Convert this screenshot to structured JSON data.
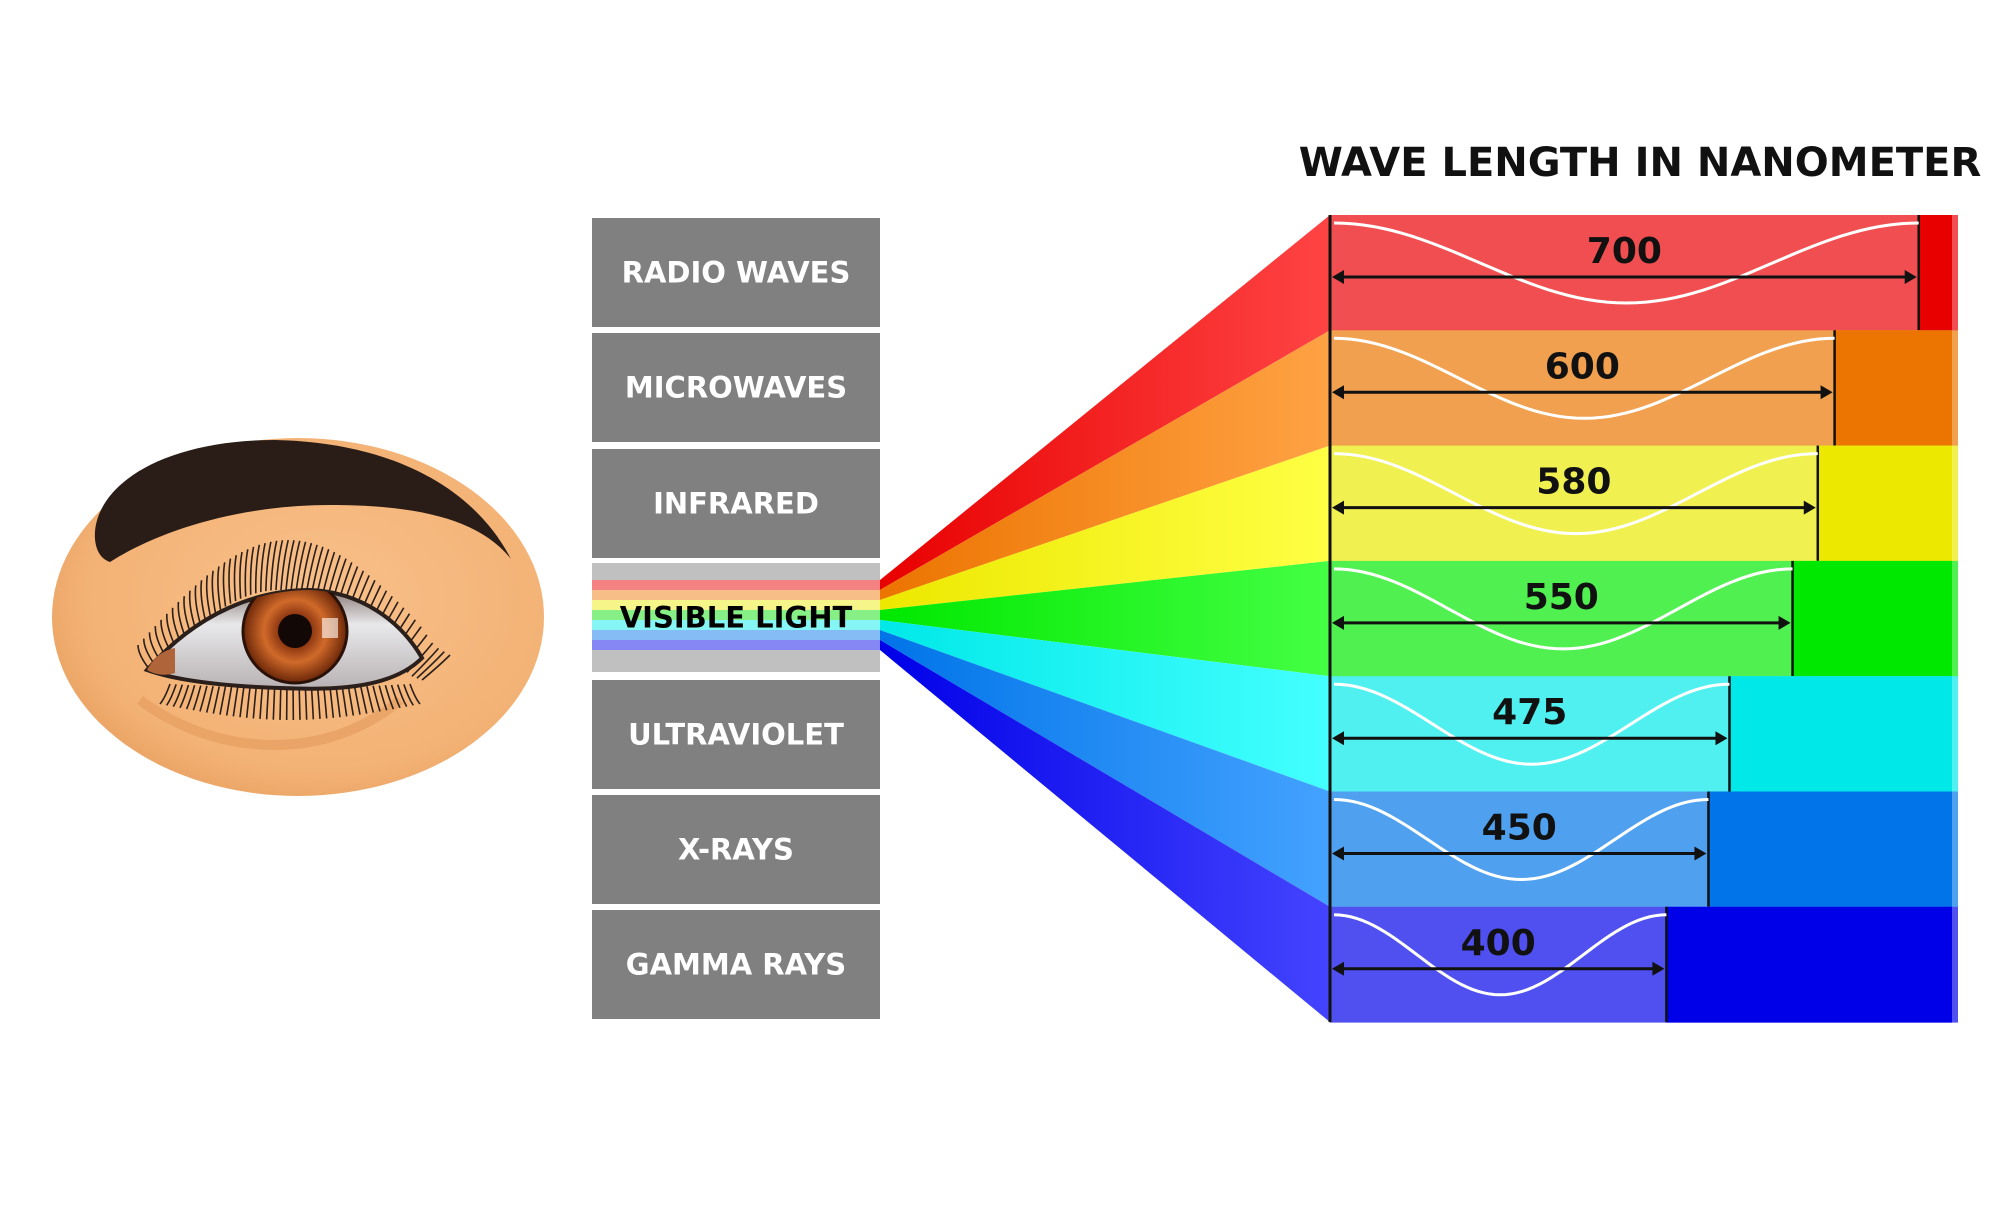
{
  "title": "WAVE LENGTH IN NANOMETER",
  "spectrum_bands": [
    {
      "label": "RADIO WAVES"
    },
    {
      "label": "MICROWAVES"
    },
    {
      "label": "INFRARED"
    },
    {
      "label": "VISIBLE LIGHT"
    },
    {
      "label": "ULTRAVIOLET"
    },
    {
      "label": "X-RAYS"
    },
    {
      "label": "GAMMA RAYS"
    }
  ],
  "wavelengths": [
    {
      "nm": "700",
      "value": 700,
      "light": "#f04e50",
      "dark": "#e80000",
      "fan": "#ff4444",
      "stripe": "#f58282"
    },
    {
      "nm": "600",
      "value": 600,
      "light": "#f0a04e",
      "dark": "#ec7400",
      "fan": "#ffa244",
      "stripe": "#f8be88"
    },
    {
      "nm": "580",
      "value": 580,
      "light": "#f0f050",
      "dark": "#ece800",
      "fan": "#ffff44",
      "stripe": "#f5f58a"
    },
    {
      "nm": "550",
      "value": 550,
      "light": "#50f050",
      "dark": "#00e800",
      "fan": "#44ff44",
      "stripe": "#86f086"
    },
    {
      "nm": "475",
      "value": 475,
      "light": "#50f0f0",
      "dark": "#00e8e8",
      "fan": "#44ffff",
      "stripe": "#86f5f5"
    },
    {
      "nm": "450",
      "value": 450,
      "light": "#50a0f0",
      "dark": "#0074e8",
      "fan": "#44a2ff",
      "stripe": "#86bcf5"
    },
    {
      "nm": "400",
      "value": 400,
      "light": "#5050f0",
      "dark": "#0000e8",
      "fan": "#4444ff",
      "stripe": "#8686f5"
    }
  ],
  "colors": {
    "box": "#808080",
    "visible_box": "#c0c0c0",
    "skin": "#f5b87a",
    "iris": "#b5561e"
  }
}
